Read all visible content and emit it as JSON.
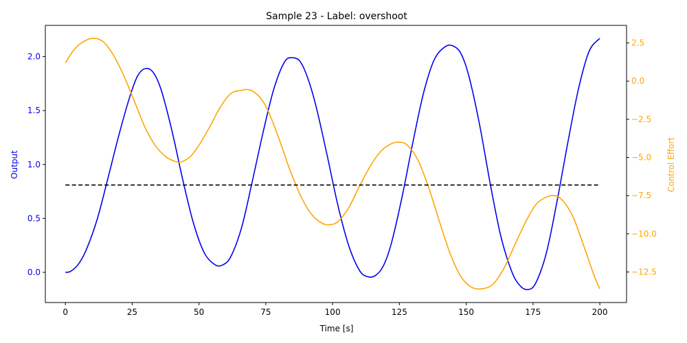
{
  "chart_data": {
    "type": "line",
    "title": "Sample 23 - Label: overshoot",
    "xlabel": "Time [s]",
    "ylabel_left": "Output",
    "ylabel_right": "Control Effort",
    "xlim": [
      -7.5,
      210
    ],
    "ylim_left": [
      -0.28,
      2.29
    ],
    "ylim_right": [
      -14.5,
      3.65
    ],
    "x_ticks": [
      0,
      25,
      50,
      75,
      100,
      125,
      150,
      175,
      200
    ],
    "x_tick_labels": [
      "0",
      "25",
      "50",
      "75",
      "100",
      "125",
      "150",
      "175",
      "200"
    ],
    "left_ticks": [
      0.0,
      0.5,
      1.0,
      1.5,
      2.0
    ],
    "left_tick_labels": [
      "0.0",
      "0.5",
      "1.0",
      "1.5",
      "2.0"
    ],
    "right_ticks": [
      2.5,
      0.0,
      -2.5,
      -5.0,
      -7.5,
      -10.0,
      -12.5
    ],
    "right_tick_labels": [
      "2.5",
      "0.0",
      "−2.5",
      "−5.0",
      "−7.5",
      "−10.0",
      "−12.5"
    ],
    "grid": false,
    "legend": "none",
    "colors": {
      "output": "#0000ee",
      "control": "#ffa500",
      "setpoint": "#000000",
      "left_axis_text": "#0000ee",
      "right_axis_text": "#ffa500"
    },
    "series": [
      {
        "axis": "left",
        "color": "#0000ee",
        "style": "solid",
        "x": [
          0,
          2,
          5,
          8,
          12,
          16,
          20,
          24,
          27,
          30,
          33,
          36,
          40,
          44,
          48,
          52,
          56,
          59,
          62,
          66,
          70,
          74,
          78,
          82,
          85,
          88,
          91,
          94,
          98,
          102,
          106,
          110,
          113,
          116,
          119,
          122,
          126,
          130,
          134,
          138,
          142,
          145,
          148,
          151,
          155,
          159,
          163,
          167,
          170,
          173,
          176,
          180,
          184,
          188,
          192,
          196,
          200
        ],
        "y": [
          0.0,
          0.01,
          0.08,
          0.22,
          0.5,
          0.88,
          1.27,
          1.62,
          1.82,
          1.89,
          1.85,
          1.68,
          1.3,
          0.85,
          0.45,
          0.18,
          0.07,
          0.07,
          0.15,
          0.42,
          0.85,
          1.3,
          1.7,
          1.95,
          1.99,
          1.95,
          1.78,
          1.52,
          1.08,
          0.62,
          0.25,
          0.02,
          -0.04,
          -0.03,
          0.06,
          0.27,
          0.7,
          1.2,
          1.66,
          1.97,
          2.09,
          2.1,
          2.03,
          1.82,
          1.37,
          0.82,
          0.33,
          0.01,
          -0.12,
          -0.16,
          -0.1,
          0.18,
          0.66,
          1.2,
          1.7,
          2.05,
          2.17
        ]
      },
      {
        "axis": "right",
        "color": "#ffa500",
        "style": "solid",
        "x": [
          0,
          3,
          6,
          10,
          14,
          18,
          22,
          26,
          30,
          34,
          38,
          42,
          44,
          47,
          50,
          54,
          58,
          62,
          66,
          68,
          70,
          73,
          76,
          80,
          84,
          88,
          92,
          96,
          99,
          102,
          106,
          110,
          114,
          118,
          122,
          125,
          128,
          132,
          136,
          140,
          144,
          148,
          152,
          156,
          160,
          164,
          168,
          172,
          176,
          180,
          183,
          186,
          190,
          194,
          198,
          200
        ],
        "y": [
          1.2,
          2.0,
          2.5,
          2.8,
          2.6,
          1.7,
          0.3,
          -1.4,
          -3.1,
          -4.3,
          -5.0,
          -5.3,
          -5.25,
          -4.9,
          -4.2,
          -3.0,
          -1.7,
          -0.8,
          -0.6,
          -0.55,
          -0.65,
          -1.1,
          -2.0,
          -3.8,
          -5.8,
          -7.5,
          -8.7,
          -9.3,
          -9.4,
          -9.2,
          -8.3,
          -6.9,
          -5.6,
          -4.6,
          -4.1,
          -4.0,
          -4.2,
          -5.2,
          -7.0,
          -9.2,
          -11.3,
          -12.8,
          -13.5,
          -13.6,
          -13.3,
          -12.3,
          -10.8,
          -9.3,
          -8.1,
          -7.6,
          -7.5,
          -7.8,
          -8.9,
          -10.8,
          -12.8,
          -13.6
        ]
      },
      {
        "axis": "left",
        "color": "#000000",
        "style": "dashed",
        "x": [
          0,
          200
        ],
        "y": [
          0.81,
          0.81
        ]
      }
    ]
  }
}
